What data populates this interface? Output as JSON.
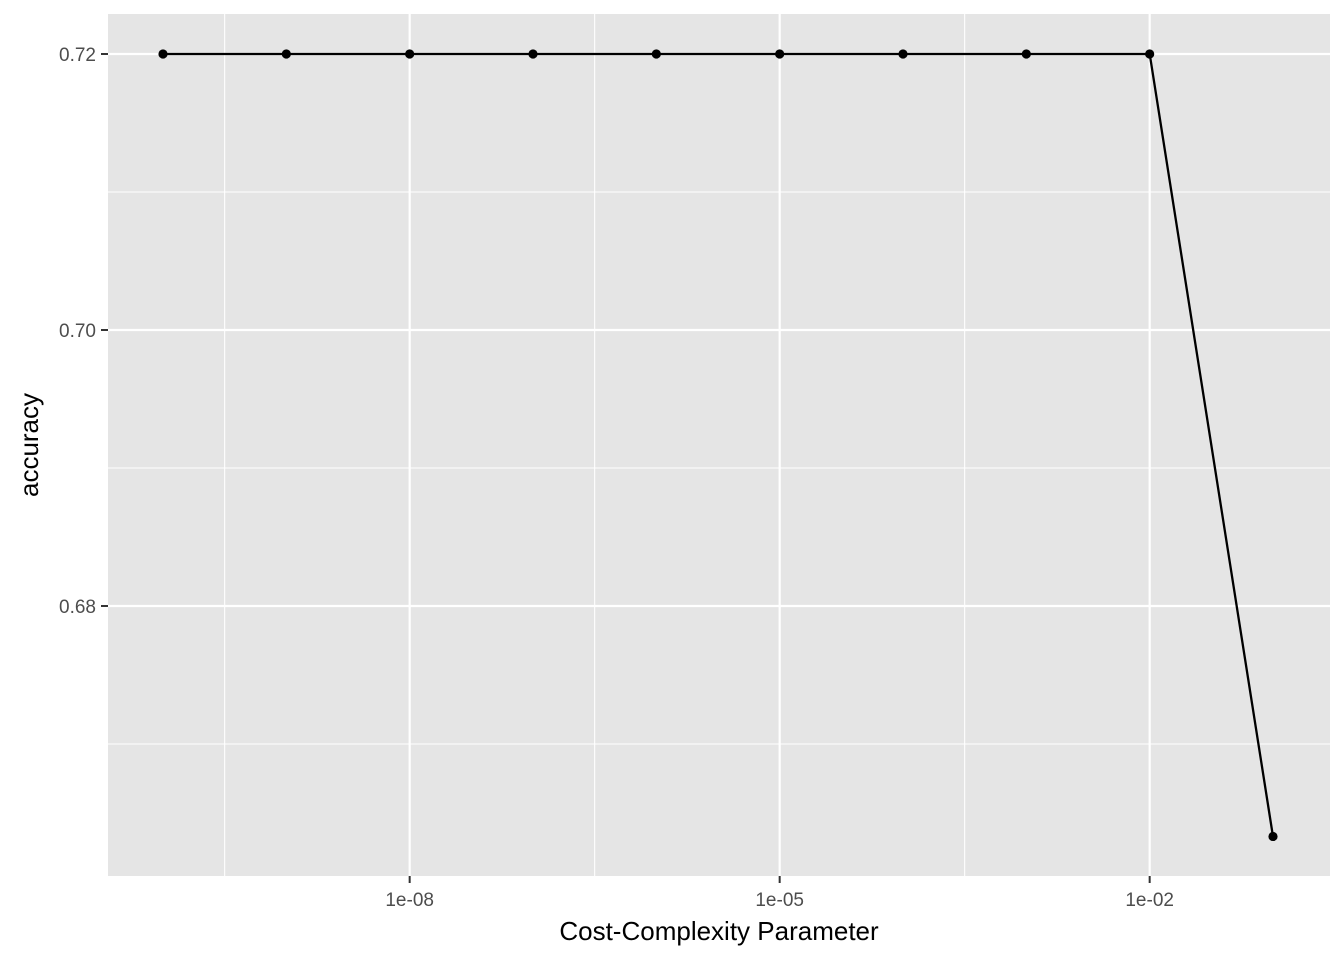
{
  "chart_data": {
    "type": "line",
    "xlabel": "Cost-Complexity Parameter",
    "ylabel": "accuracy",
    "x_scale": "log10",
    "xlim": [
      1e-10,
      1
    ],
    "ylim": [
      0.6625,
      0.7231
    ],
    "x_ticks": [
      {
        "value": 1e-08,
        "label": "1e-08"
      },
      {
        "value": 1e-05,
        "label": "1e-05"
      },
      {
        "value": 0.01,
        "label": "1e-02"
      }
    ],
    "y_ticks": [
      {
        "value": 0.68,
        "label": "0.68"
      },
      {
        "value": 0.7,
        "label": "0.70"
      },
      {
        "value": 0.72,
        "label": "0.72"
      }
    ],
    "grid": true,
    "series": [
      {
        "x": [
          1e-10,
          1e-09,
          1e-08,
          1e-07,
          1e-06,
          1e-05,
          0.0001,
          0.001,
          0.01,
          0.1
        ],
        "y": [
          0.72,
          0.72,
          0.72,
          0.72,
          0.72,
          0.72,
          0.72,
          0.72,
          0.72,
          0.6633
        ]
      }
    ]
  },
  "colors": {
    "panel_background": "#e5e5e5",
    "grid_line": "#ffffff",
    "line": "#000000",
    "point": "#000000",
    "tick_text": "#4d4d4d"
  }
}
